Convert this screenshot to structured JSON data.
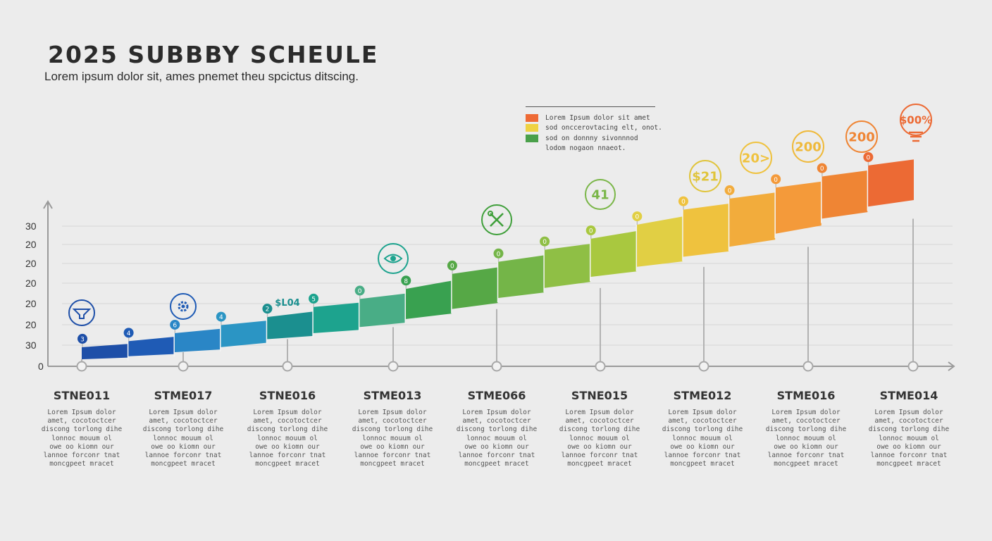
{
  "header": {
    "title": "2025 SUBBBY SCHEULE",
    "subtitle": "Lorem ipsum dolor sit, ames  pnemet theu spcictus ditscing."
  },
  "legend": {
    "items": [
      {
        "label": "Lorem Ipsum dolor sit amet",
        "color": "#ee6a35"
      },
      {
        "label": "sod onccerovtacing elt, onot.",
        "color": "#efd242"
      },
      {
        "label": "sod on donnny sivonnnod",
        "color": "#4aa04a"
      },
      {
        "label": "lodom nogaon nnaeot.",
        "color": ""
      }
    ]
  },
  "stages": [
    {
      "name": "STNE011",
      "desc": "Lorem Ipsum dolor\namet, cocotoctcer\ndiscong torlong dihe\nlonnoc mouum ol\nowe oo kiomn our\nlannoe forconr tnat\nmoncgpeet mracet"
    },
    {
      "name": "STME017",
      "desc": "Lorem Ipsum dolor\namet, cocotoctcer\ndiscong torlong dihe\nlonnoc mouum ol\nowe oo kiomn our\nlannoe forconr tnat\nmoncgpeet mracet"
    },
    {
      "name": "STNE016",
      "desc": "Lorem Ipsum dolor\namet, cocotoctcer\ndiscong torlong dihe\nlonnoc mouum ol\nowe oo kiomn our\nlannoe forconr tnat\nmoncgpeet mracet"
    },
    {
      "name": "STME013",
      "desc": "Lorem Ipsum dolor\namet, cocotoctcer\ndiscong torlong dihe\nlonnoc mouum ol\nowe oo kiomn our\nlannoe forconr tnat\nmoncgpeet mracet"
    },
    {
      "name": "STME066",
      "desc": "Lorem Ipsum dolor\namet, cocotoctcer\ndiscong torlong dihe\nlonnoc mouum ol\nowe oo kiomn our\nlannoe forconr tnat\nmoncgpeet mracet"
    },
    {
      "name": "STNE015",
      "desc": "Lorem Ipsum dolor\namet, cocotoctcer\ndiscong torlong dihe\nlonnoc mouum ol\nowe oo kiomn our\nlannoe forconr tnat\nmoncgpeet mracet"
    },
    {
      "name": "STME012",
      "desc": "Lorem Ipsum dolor\namet, cocotoctcer\ndiscong torlong dihe\nlonnoc mouum ol\nowe oo kiomn our\nlannoe forconr tnat\nmoncgpeet mracet"
    },
    {
      "name": "STME016",
      "desc": "Lorem Ipsum dolor\namet, cocotoctcer\ndiscong torlong dihe\nlonnoc mouum ol\nowe oo kiomn our\nlannoe forconr tnat\nmoncgpeet mracet"
    },
    {
      "name": "STME014",
      "desc": "Lorem Ipsum dolor\namet, cocotoctcer\ndiscong torlong dihe\nlonnoc mouum ol\nowe oo kiomn our\nlannoe forconr tnat\nmoncgpeet mracet"
    }
  ],
  "chart_data": {
    "type": "area",
    "title": "2025 SUBBBY SCHEULE",
    "subtitle": "Lorem ipsum dolor sit, ames  pnemet theu spcictus ditscing.",
    "y_tick_labels": [
      "0",
      "30",
      "20",
      "20",
      "20",
      "20",
      "20",
      "30"
    ],
    "y_tick_values": [
      0,
      1,
      2,
      3,
      4,
      5,
      6,
      7
    ],
    "ylim": [
      0,
      7
    ],
    "grid": true,
    "legend_position": "top-right",
    "categories": [
      "STNE011",
      "STME017",
      "STNE016",
      "STME013",
      "STME066",
      "STNE015",
      "STME012",
      "STME016",
      "STME014"
    ],
    "segments": [
      {
        "bottom": 0.35,
        "top": 0.95,
        "color": "#1e4fa8"
      },
      {
        "bottom": 0.5,
        "top": 1.25,
        "color": "#1f5bb5"
      },
      {
        "bottom": 0.7,
        "top": 1.65,
        "color": "#2a86c6"
      },
      {
        "bottom": 0.95,
        "top": 2.05,
        "color": "#2b95c4"
      },
      {
        "bottom": 1.35,
        "top": 2.45,
        "color": "#1b8f8f"
      },
      {
        "bottom": 1.65,
        "top": 2.95,
        "color": "#1da38e"
      },
      {
        "bottom": 1.95,
        "top": 3.35,
        "color": "#49ad86"
      },
      {
        "bottom": 2.35,
        "top": 3.85,
        "color": "#39a150"
      },
      {
        "bottom": 2.85,
        "top": 4.6,
        "color": "#56a846"
      },
      {
        "bottom": 3.4,
        "top": 5.2,
        "color": "#74b548"
      },
      {
        "bottom": 3.9,
        "top": 5.8,
        "color": "#8fbf45"
      },
      {
        "bottom": 4.45,
        "top": 6.35,
        "color": "#a9c83f"
      },
      {
        "bottom": 4.95,
        "top": 7.05,
        "color": "#e1cf44"
      },
      {
        "bottom": 5.45,
        "top": 7.8,
        "color": "#efc23e"
      },
      {
        "bottom": 5.95,
        "top": 8.35,
        "color": "#f2ac3c"
      },
      {
        "bottom": 6.6,
        "top": 8.9,
        "color": "#f49a3a"
      },
      {
        "bottom": 7.35,
        "top": 9.45,
        "color": "#ef8534"
      },
      {
        "bottom": 7.95,
        "top": 10.0,
        "color": "#ec6a34"
      }
    ],
    "callouts": [
      {
        "label": "",
        "icon": "funnel-icon",
        "color": "#1e4fa8"
      },
      {
        "label": "",
        "icon": "gear-icon",
        "color": "#1f5bb5"
      },
      {
        "label": "$L04",
        "icon": "",
        "color": "#1b8f8f"
      },
      {
        "label": "",
        "icon": "eye-icon",
        "color": "#1da38e"
      },
      {
        "label": "",
        "icon": "tools-icon",
        "color": "#3f9f3a"
      },
      {
        "label": "41",
        "icon": "",
        "color": "#7ab648"
      },
      {
        "label": "$21",
        "icon": "",
        "color": "#e0c43a"
      },
      {
        "label": "20>",
        "icon": "",
        "color": "#efc23e"
      },
      {
        "label": "200",
        "icon": "",
        "color": "#efb93a"
      },
      {
        "label": "200",
        "icon": "",
        "color": "#ef8534"
      },
      {
        "label": "$00%",
        "icon": "lightbulb-icon",
        "color": "#ec6a34"
      }
    ],
    "point_markers": [
      "3",
      "4",
      "6",
      "4",
      "2",
      "5",
      "0",
      "8",
      "0",
      "0",
      "0",
      "0",
      "0",
      "0",
      "0",
      "0",
      "0",
      "0"
    ],
    "colors": {
      "axis": "#9a9a9a",
      "grid": "#d6d6d6",
      "marker_blue": "#1e4fa8",
      "marker_teal": "#1b8f8f",
      "marker_green": "#3f9f3a",
      "marker_yellow": "#e7c43c",
      "marker_orange": "#ef8534"
    }
  }
}
